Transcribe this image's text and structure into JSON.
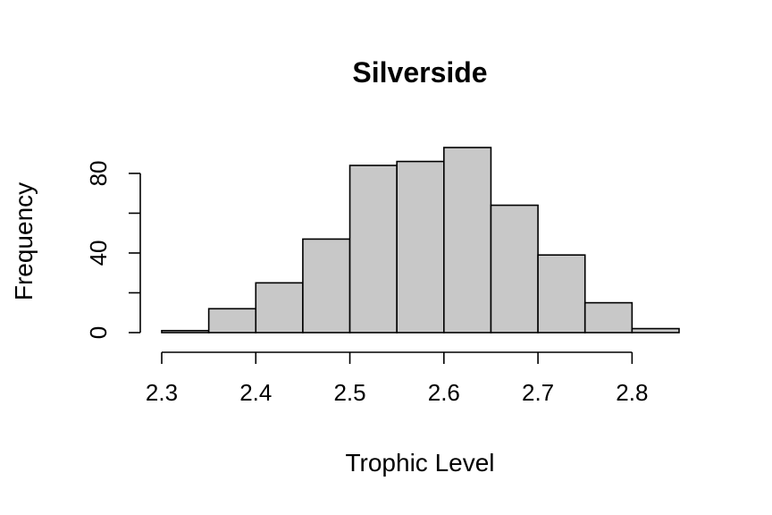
{
  "chart_data": {
    "type": "bar",
    "title": "Silverside",
    "xlabel": "Trophic Level",
    "ylabel": "Frequency",
    "bin_edges": [
      2.3,
      2.35,
      2.4,
      2.45,
      2.5,
      2.55,
      2.6,
      2.65,
      2.7,
      2.75,
      2.8,
      2.85
    ],
    "values": [
      1,
      12,
      25,
      47,
      84,
      86,
      93,
      64,
      39,
      15,
      2
    ],
    "xlim": [
      2.3,
      2.85
    ],
    "ylim": [
      0,
      93
    ],
    "x_ticks": [
      2.3,
      2.4,
      2.5,
      2.6,
      2.7,
      2.8
    ],
    "x_tick_labels": [
      "2.3",
      "2.4",
      "2.5",
      "2.6",
      "2.7",
      "2.8"
    ],
    "y_ticks": [
      0,
      20,
      40,
      60,
      80
    ],
    "y_tick_labels": [
      "0",
      "",
      "40",
      "",
      "80"
    ],
    "bar_color": "#c8c8c8",
    "grid": false,
    "legend": "none"
  }
}
